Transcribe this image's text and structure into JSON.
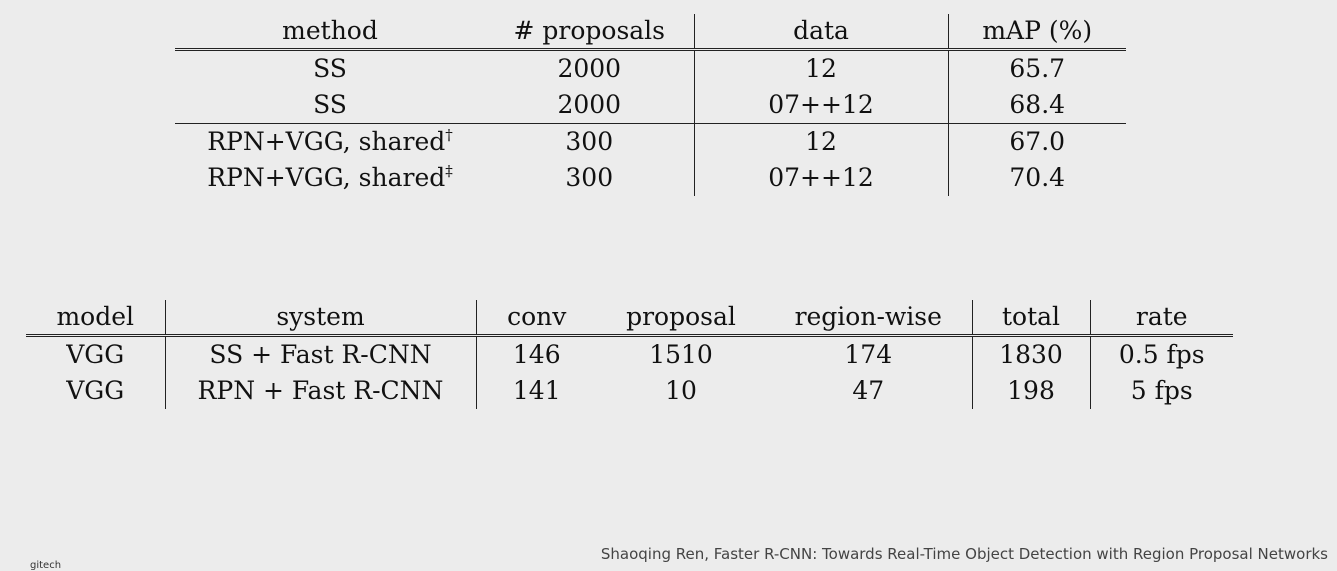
{
  "table1": {
    "headers": [
      "method",
      "# proposals",
      "data",
      "mAP (%)"
    ],
    "rows": [
      {
        "method": "SS",
        "sup": "",
        "proposals": "2000",
        "data": "12",
        "map": "65.7"
      },
      {
        "method": "SS",
        "sup": "",
        "proposals": "2000",
        "data": "07++12",
        "map": "68.4"
      },
      {
        "method": "RPN+VGG, shared",
        "sup": "†",
        "proposals": "300",
        "data": "12",
        "map": "67.0"
      },
      {
        "method": "RPN+VGG, shared",
        "sup": "‡",
        "proposals": "300",
        "data": "07++12",
        "map": "70.4"
      }
    ]
  },
  "table2": {
    "headers": [
      "model",
      "system",
      "conv",
      "proposal",
      "region-wise",
      "total",
      "rate"
    ],
    "rows": [
      {
        "model": "VGG",
        "system": "SS + Fast R-CNN",
        "conv": "146",
        "proposal": "1510",
        "region": "174",
        "total": "1830",
        "rate": "0.5 fps"
      },
      {
        "model": "VGG",
        "system": "RPN + Fast R-CNN",
        "conv": "141",
        "proposal": "10",
        "region": "47",
        "total": "198",
        "rate": "5 fps"
      }
    ]
  },
  "caption": "Shaoqing Ren, Faster R-CNN: Towards Real-Time Object Detection with Region Proposal Networks",
  "logo_text": "gitech"
}
